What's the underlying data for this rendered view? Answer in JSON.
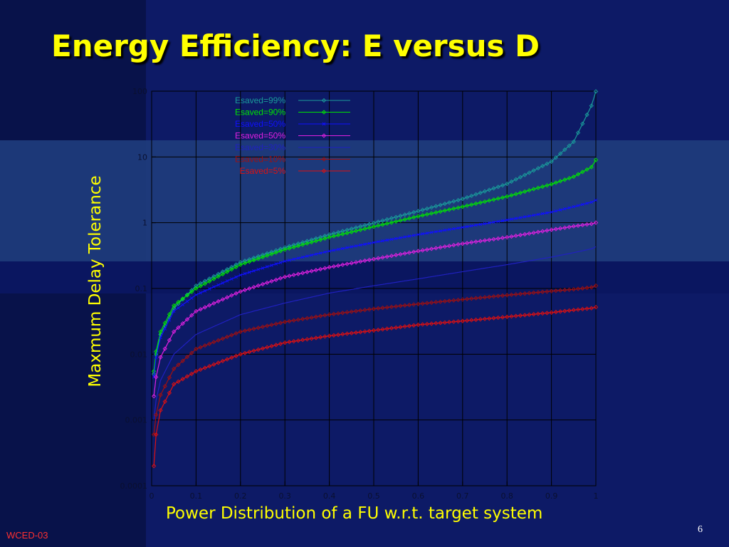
{
  "slide": {
    "title": "Energy Efficiency: E versus D",
    "footer": "WCED-03",
    "page_number": "6"
  },
  "colors": {
    "background": "#0d1a66",
    "title": "#ffff00",
    "footer": "#ff3030",
    "axis": "#000000",
    "grid": "#000000"
  },
  "chart_data": {
    "type": "line",
    "title": "",
    "xlabel": "Power Distribution of a FU w.r.t. target system",
    "ylabel": "Maxmum Delay Tolerance",
    "xlim": [
      0,
      1
    ],
    "ylim": [
      0.0001,
      100
    ],
    "yscale": "log",
    "grid": true,
    "legend_position": "top",
    "x_ticks": [
      "0",
      "0.1",
      "0.2",
      "0.3",
      "0.4",
      "0.5",
      "0.6",
      "0.7",
      "0.8",
      "0.9",
      "1"
    ],
    "y_ticks": [
      "0.0001",
      "0.001",
      "0.01",
      "0.1",
      "1",
      "10",
      "100"
    ],
    "x": [
      0.005,
      0.01,
      0.02,
      0.05,
      0.1,
      0.2,
      0.3,
      0.4,
      0.5,
      0.6,
      0.7,
      0.8,
      0.9,
      0.95,
      0.99,
      1.0
    ],
    "series": [
      {
        "name": "Esaved=99%",
        "color": "#1a9a9a",
        "marker": "diamond",
        "values": [
          0.005,
          0.01,
          0.02,
          0.05,
          0.11,
          0.25,
          0.42,
          0.66,
          0.99,
          1.5,
          2.3,
          3.9,
          8.5,
          17,
          60,
          99
        ]
      },
      {
        "name": "Esaved=90%",
        "color": "#00e600",
        "marker": "diamond",
        "values": [
          0.0055,
          0.011,
          0.022,
          0.055,
          0.1,
          0.23,
          0.39,
          0.6,
          0.87,
          1.25,
          1.75,
          2.5,
          3.85,
          5.0,
          7.0,
          9.0
        ]
      },
      {
        "name": "Esaved=50%",
        "color": "#1010ff",
        "marker": "cross",
        "values": [
          0.0045,
          0.009,
          0.018,
          0.045,
          0.08,
          0.16,
          0.26,
          0.37,
          0.5,
          0.66,
          0.85,
          1.1,
          1.45,
          1.75,
          2.05,
          2.2
        ]
      },
      {
        "name": "Esaved=50%",
        "color": "#e020e0",
        "marker": "diamond",
        "values": [
          0.0023,
          0.0045,
          0.009,
          0.022,
          0.045,
          0.09,
          0.15,
          0.21,
          0.28,
          0.37,
          0.48,
          0.6,
          0.78,
          0.88,
          0.96,
          1.0
        ]
      },
      {
        "name": "Esaved=30%",
        "color": "#2020c0",
        "marker": "none",
        "values": [
          0.001,
          0.002,
          0.004,
          0.01,
          0.02,
          0.04,
          0.06,
          0.085,
          0.11,
          0.14,
          0.18,
          0.23,
          0.3,
          0.35,
          0.4,
          0.43
        ]
      },
      {
        "name": "Esaved=10%",
        "color": "#a01010",
        "marker": "diamond",
        "values": [
          0.0006,
          0.0012,
          0.0024,
          0.006,
          0.012,
          0.022,
          0.031,
          0.04,
          0.049,
          0.058,
          0.068,
          0.079,
          0.091,
          0.097,
          0.104,
          0.11
        ]
      },
      {
        "name": "Esaved=5%",
        "color": "#e01010",
        "marker": "diamond",
        "values": [
          0.0002,
          0.0006,
          0.0014,
          0.0035,
          0.0055,
          0.01,
          0.015,
          0.019,
          0.023,
          0.028,
          0.032,
          0.037,
          0.043,
          0.047,
          0.05,
          0.052
        ]
      }
    ]
  }
}
